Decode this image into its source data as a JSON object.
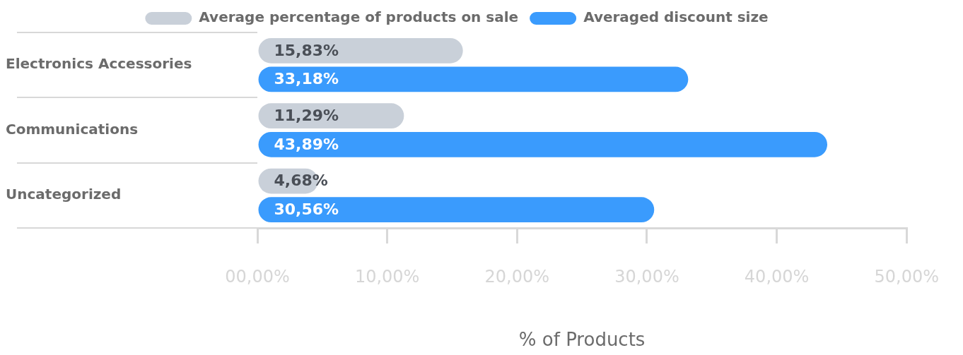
{
  "chart_data": {
    "type": "bar",
    "orientation": "horizontal",
    "categories": [
      "Electronics Accessories",
      "Communications",
      "Uncategorized"
    ],
    "series": [
      {
        "name": "Average percentage of products on sale",
        "color": "#c9d0d9",
        "values": [
          15.83,
          11.29,
          4.68
        ],
        "value_labels": [
          "15,83%",
          "11,29%",
          "4,68%"
        ]
      },
      {
        "name": "Averaged discount size",
        "color": "#3a9bfd",
        "values": [
          33.18,
          43.89,
          30.56
        ],
        "value_labels": [
          "33,18%",
          "43,89%",
          "30,56%"
        ]
      }
    ],
    "xlabel": "% of Products",
    "xlim": [
      0,
      50
    ],
    "xticks": [
      {
        "value": 0,
        "label": "00,00%"
      },
      {
        "value": 10,
        "label": "10,00%"
      },
      {
        "value": 20,
        "label": "20,00%"
      },
      {
        "value": 30,
        "label": "30,00%"
      },
      {
        "value": 40,
        "label": "40,00%"
      },
      {
        "value": 50,
        "label": "50,00%"
      }
    ],
    "legend": "top"
  }
}
